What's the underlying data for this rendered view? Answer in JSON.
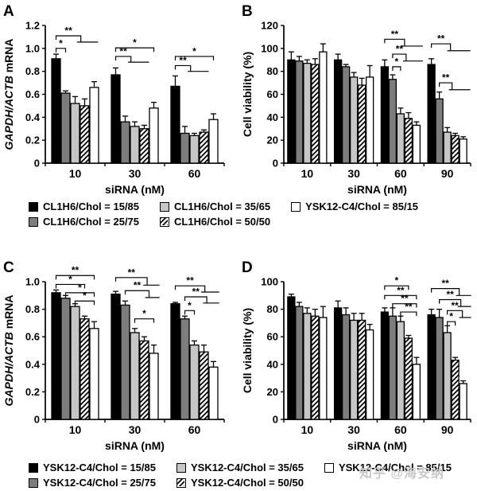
{
  "watermark": "知乎 @海安纳",
  "colors": {
    "black": "#000000",
    "darkGray": "#7d7d7d",
    "lightGray": "#c6c6c6",
    "white": "#ffffff",
    "axis": "#000000",
    "watermark": "#c7c7c7"
  },
  "legends": [
    {
      "name": "cl1h6",
      "items": [
        {
          "swatch": "black",
          "label": "CL1H6/Chol = 15/85"
        },
        {
          "swatch": "darkGray",
          "label": "CL1H6/Chol = 25/75"
        },
        {
          "swatch": "lightGray",
          "label": "CL1H6/Chol = 35/65"
        },
        {
          "swatch": "hatch",
          "label": "CL1H6/Chol = 50/50"
        },
        {
          "swatch": "white",
          "label": "YSK12-C4/Chol = 85/15"
        }
      ]
    },
    {
      "name": "ysk12",
      "items": [
        {
          "swatch": "black",
          "label": "YSK12-C4/Chol = 15/85"
        },
        {
          "swatch": "darkGray",
          "label": "YSK12-C4/Chol = 25/75"
        },
        {
          "swatch": "lightGray",
          "label": "YSK12-C4/Chol = 35/65"
        },
        {
          "swatch": "hatch",
          "label": "YSK12-C4/Chol = 50/50"
        },
        {
          "swatch": "white",
          "label": "YSK12-C4/Chol = 85/15"
        }
      ]
    }
  ],
  "chart_data": [
    {
      "panel": "A",
      "type": "bar",
      "title": "",
      "xlabel": "siRNA (nM)",
      "ylabel_parts": [
        {
          "text": "GAPDH/ACTB",
          "italic": true
        },
        {
          "text": " mRNA",
          "italic": false
        }
      ],
      "ylim": [
        0,
        1.2
      ],
      "ytick_step": 0.2,
      "ytick_decimals": 1,
      "categories": [
        "10",
        "30",
        "60"
      ],
      "series": [
        {
          "name": "CL1H6/Chol = 15/85",
          "fill": "black",
          "values": [
            0.91,
            0.77,
            0.67
          ],
          "errors": [
            0.04,
            0.06,
            0.09
          ]
        },
        {
          "name": "CL1H6/Chol = 25/75",
          "fill": "darkGray",
          "values": [
            0.61,
            0.36,
            0.26
          ],
          "errors": [
            0.02,
            0.05,
            0.06
          ]
        },
        {
          "name": "CL1H6/Chol = 35/65",
          "fill": "lightGray",
          "values": [
            0.52,
            0.32,
            0.24
          ],
          "errors": [
            0.06,
            0.04,
            0.02
          ]
        },
        {
          "name": "CL1H6/Chol = 50/50",
          "fill": "hatch",
          "values": [
            0.5,
            0.3,
            0.27
          ],
          "errors": [
            0.06,
            0.03,
            0.02
          ]
        },
        {
          "name": "YSK12-C4/Chol = 85/15",
          "fill": "white",
          "values": [
            0.66,
            0.48,
            0.38
          ],
          "errors": [
            0.05,
            0.05,
            0.05
          ]
        }
      ],
      "brackets": [
        {
          "group": 0,
          "from": 0,
          "to": 1,
          "label": "*",
          "y": 1.0
        },
        {
          "group": 0,
          "from": 0,
          "to": 2.6,
          "label": "**",
          "y": 1.11,
          "tail": {
            "from": 2.2,
            "to": 4.4,
            "y": 1.055
          }
        },
        {
          "group": 1,
          "from": 0,
          "to": 4,
          "label": "*",
          "y": 1.005
        },
        {
          "group": 1,
          "from": 0,
          "to": 1.6,
          "label": "**",
          "y": 0.93,
          "tail": {
            "from": 1.3,
            "to": 3.5,
            "y": 0.88
          }
        },
        {
          "group": 2,
          "from": 0,
          "to": 4,
          "label": "*",
          "y": 0.93
        },
        {
          "group": 2,
          "from": 0,
          "to": 1.6,
          "label": "**",
          "y": 0.85,
          "tail": {
            "from": 1.3,
            "to": 3.5,
            "y": 0.8
          }
        }
      ]
    },
    {
      "panel": "B",
      "type": "bar",
      "title": "",
      "xlabel": "siRNA (nM)",
      "ylabel_parts": [
        {
          "text": "Cell viability (%)",
          "italic": false
        }
      ],
      "ylim": [
        0,
        120
      ],
      "ytick_step": 20,
      "ytick_decimals": 0,
      "categories": [
        "10",
        "30",
        "60",
        "90"
      ],
      "series": [
        {
          "name": "CL1H6/Chol = 15/85",
          "fill": "black",
          "values": [
            90,
            90,
            84,
            86
          ],
          "errors": [
            7,
            5,
            6,
            5
          ]
        },
        {
          "name": "CL1H6/Chol = 25/75",
          "fill": "darkGray",
          "values": [
            89,
            84,
            73,
            56
          ],
          "errors": [
            4,
            2,
            4,
            6
          ]
        },
        {
          "name": "CL1H6/Chol = 35/65",
          "fill": "lightGray",
          "values": [
            87,
            75,
            43,
            27
          ],
          "errors": [
            3,
            4,
            5,
            4
          ]
        },
        {
          "name": "CL1H6/Chol = 50/50",
          "fill": "hatch",
          "values": [
            86,
            68,
            39,
            24
          ],
          "errors": [
            5,
            6,
            5,
            2
          ]
        },
        {
          "name": "YSK12-C4/Chol = 85/15",
          "fill": "white",
          "values": [
            97,
            75,
            33,
            21
          ],
          "errors": [
            7,
            10,
            3,
            2
          ]
        }
      ],
      "brackets": [
        {
          "group": 2,
          "from": 0,
          "to": 2.5,
          "label": "**",
          "y": 108,
          "tail": {
            "from": 2.1,
            "to": 4.8,
            "y": 102
          }
        },
        {
          "group": 2,
          "from": 1,
          "to": 2.7,
          "label": "**",
          "y": 95,
          "tail": {
            "from": 2.3,
            "to": 4.8,
            "y": 89
          }
        },
        {
          "group": 2,
          "from": 1,
          "to": 2,
          "label": "*",
          "y": 84
        },
        {
          "group": 3,
          "from": 0,
          "to": 2.4,
          "label": "**",
          "y": 104,
          "tail": {
            "from": 2.0,
            "to": 4.9,
            "y": 98
          }
        },
        {
          "group": 3,
          "from": 1,
          "to": 2.6,
          "label": "**",
          "y": 70,
          "tail": {
            "from": 2.2,
            "to": 4.9,
            "y": 64
          }
        }
      ]
    },
    {
      "panel": "C",
      "type": "bar",
      "title": "",
      "xlabel": "siRNA (nM)",
      "ylabel_parts": [
        {
          "text": "GAPDH/ACTB",
          "italic": true
        },
        {
          "text": " mRNA",
          "italic": false
        }
      ],
      "ylim": [
        0,
        1.0
      ],
      "ytick_step": 0.2,
      "ytick_decimals": 1,
      "categories": [
        "10",
        "30",
        "60"
      ],
      "series": [
        {
          "name": "YSK12-C4/Chol = 15/85",
          "fill": "black",
          "values": [
            0.92,
            0.91,
            0.84
          ],
          "errors": [
            0.02,
            0.02,
            0.01
          ]
        },
        {
          "name": "YSK12-C4/Chol = 25/75",
          "fill": "darkGray",
          "values": [
            0.88,
            0.83,
            0.73
          ],
          "errors": [
            0.02,
            0.03,
            0.02
          ]
        },
        {
          "name": "YSK12-C4/Chol = 35/65",
          "fill": "lightGray",
          "values": [
            0.82,
            0.63,
            0.54
          ],
          "errors": [
            0.02,
            0.03,
            0.03
          ]
        },
        {
          "name": "YSK12-C4/Chol = 50/50",
          "fill": "hatch",
          "values": [
            0.73,
            0.57,
            0.49
          ],
          "errors": [
            0.02,
            0.03,
            0.05
          ]
        },
        {
          "name": "YSK12-C4/Chol = 85/15",
          "fill": "white",
          "values": [
            0.66,
            0.48,
            0.38
          ],
          "errors": [
            0.05,
            0.06,
            0.04
          ]
        }
      ],
      "brackets": [
        {
          "group": 0,
          "from": 0,
          "to": 4,
          "label": "**",
          "y": 1.045
        },
        {
          "group": 0,
          "from": 0,
          "to": 3,
          "label": "*",
          "y": 0.98
        },
        {
          "group": 0,
          "from": 1,
          "to": 4,
          "label": "*",
          "y": 0.92
        },
        {
          "group": 0,
          "from": 2,
          "to": 4,
          "label": "*",
          "y": 0.86
        },
        {
          "group": 1,
          "from": 0,
          "to": 3.3,
          "label": "**",
          "y": 1.03,
          "tail": {
            "from": 2.9,
            "to": 4.6,
            "y": 0.975
          }
        },
        {
          "group": 1,
          "from": 1,
          "to": 3.5,
          "label": "**",
          "y": 0.935,
          "tail": {
            "from": 3.1,
            "to": 4.6,
            "y": 0.885
          }
        },
        {
          "group": 1,
          "from": 2,
          "to": 4,
          "label": "*",
          "y": 0.73
        },
        {
          "group": 2,
          "from": 0,
          "to": 3.1,
          "label": "**",
          "y": 0.97,
          "tail": {
            "from": 2.7,
            "to": 4.6,
            "y": 0.925
          }
        },
        {
          "group": 2,
          "from": 1,
          "to": 3.3,
          "label": "**",
          "y": 0.89,
          "tail": {
            "from": 2.9,
            "to": 4.6,
            "y": 0.845
          }
        },
        {
          "group": 2,
          "from": 1,
          "to": 2,
          "label": "*",
          "y": 0.79
        }
      ]
    },
    {
      "panel": "D",
      "type": "bar",
      "title": "",
      "xlabel": "siRNA (nM)",
      "ylabel_parts": [
        {
          "text": "Cell viability (%)",
          "italic": false
        }
      ],
      "ylim": [
        0,
        100
      ],
      "ytick_step": 20,
      "ytick_decimals": 0,
      "categories": [
        "10",
        "30",
        "60",
        "90"
      ],
      "series": [
        {
          "name": "YSK12-C4/Chol = 15/85",
          "fill": "black",
          "values": [
            89,
            81,
            78,
            76
          ],
          "errors": [
            2,
            5,
            3,
            4
          ]
        },
        {
          "name": "YSK12-C4/Chol = 25/75",
          "fill": "darkGray",
          "values": [
            82,
            76,
            75,
            74
          ],
          "errors": [
            3,
            5,
            6,
            6
          ]
        },
        {
          "name": "YSK12-C4/Chol = 35/65",
          "fill": "lightGray",
          "values": [
            77,
            72,
            71,
            63
          ],
          "errors": [
            4,
            5,
            4,
            5
          ]
        },
        {
          "name": "YSK12-C4/Chol = 50/50",
          "fill": "hatch",
          "values": [
            75,
            72,
            59,
            43
          ],
          "errors": [
            5,
            5,
            2,
            2
          ]
        },
        {
          "name": "YSK12-C4/Chol = 85/15",
          "fill": "white",
          "values": [
            74,
            65,
            40,
            26
          ],
          "errors": [
            8,
            4,
            5,
            2
          ]
        }
      ],
      "brackets": [
        {
          "group": 2,
          "from": 0,
          "to": 3,
          "label": "*",
          "y": 97
        },
        {
          "group": 2,
          "from": 0,
          "to": 4,
          "label": "**",
          "y": 90
        },
        {
          "group": 2,
          "from": 1,
          "to": 4,
          "label": "**",
          "y": 84
        },
        {
          "group": 2,
          "from": 2,
          "to": 4,
          "label": "**",
          "y": 78
        },
        {
          "group": 3,
          "from": 0,
          "to": 3.5,
          "label": "**",
          "y": 95,
          "tail": {
            "from": 3.1,
            "to": 5.0,
            "y": 90
          }
        },
        {
          "group": 3,
          "from": 1,
          "to": 3.7,
          "label": "**",
          "y": 87,
          "tail": {
            "from": 3.3,
            "to": 5.0,
            "y": 82
          }
        },
        {
          "group": 3,
          "from": 2,
          "to": 3.9,
          "label": "**",
          "y": 79,
          "tail": {
            "from": 3.5,
            "to": 5.0,
            "y": 74
          }
        },
        {
          "group": 3,
          "from": 2,
          "to": 3,
          "label": "*",
          "y": 71
        }
      ]
    }
  ]
}
